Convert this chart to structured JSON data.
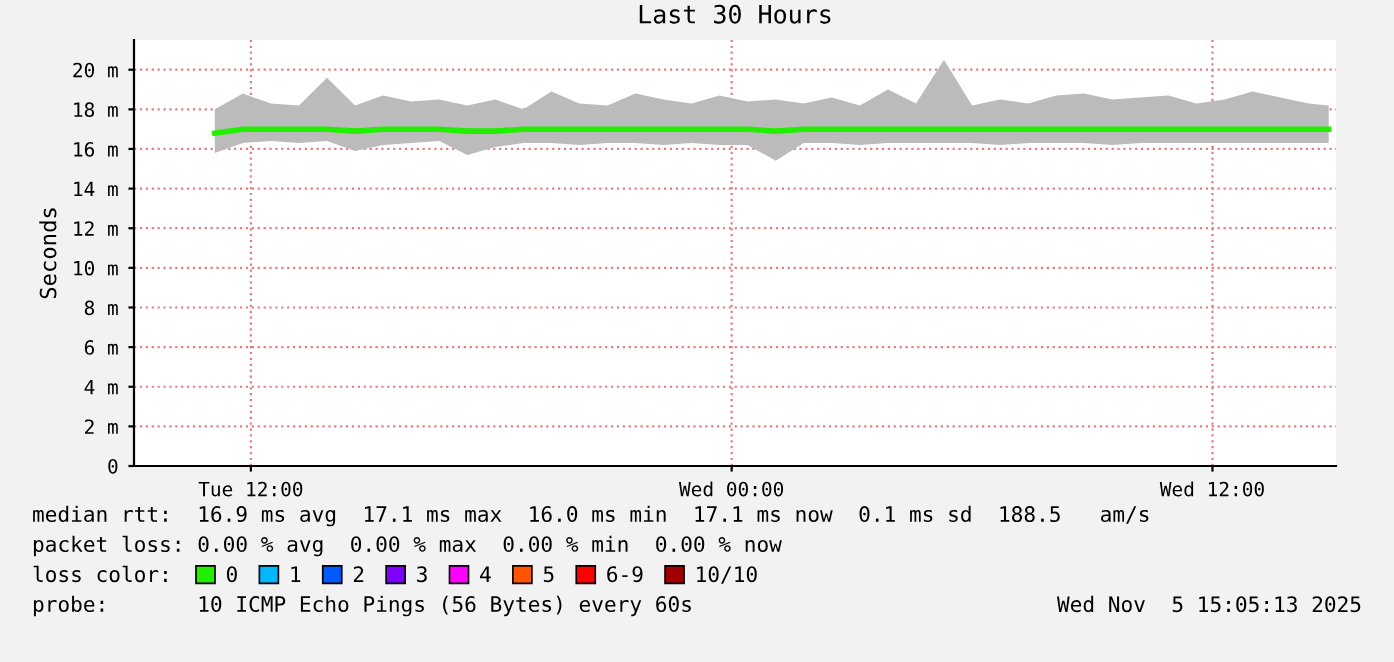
{
  "chart_data": {
    "type": "line",
    "title": "Last 30 Hours",
    "ylabel": "Seconds",
    "x": [
      "2025-11-04T11:06",
      "2025-11-04T11:48",
      "2025-11-04T12:30",
      "2025-11-04T13:12",
      "2025-11-04T13:54",
      "2025-11-04T14:36",
      "2025-11-04T15:18",
      "2025-11-04T16:00",
      "2025-11-04T16:42",
      "2025-11-04T17:24",
      "2025-11-04T18:06",
      "2025-11-04T18:48",
      "2025-11-04T19:30",
      "2025-11-04T20:12",
      "2025-11-04T20:54",
      "2025-11-04T21:36",
      "2025-11-04T22:18",
      "2025-11-04T23:00",
      "2025-11-04T23:42",
      "2025-11-05T00:24",
      "2025-11-05T01:06",
      "2025-11-05T01:48",
      "2025-11-05T02:30",
      "2025-11-05T03:12",
      "2025-11-05T03:54",
      "2025-11-05T04:36",
      "2025-11-05T05:18",
      "2025-11-05T06:00",
      "2025-11-05T06:42",
      "2025-11-05T07:24",
      "2025-11-05T08:06",
      "2025-11-05T08:48",
      "2025-11-05T09:30",
      "2025-11-05T10:12",
      "2025-11-05T10:54",
      "2025-11-05T11:36",
      "2025-11-05T12:18",
      "2025-11-05T13:00",
      "2025-11-05T13:42",
      "2025-11-05T14:24",
      "2025-11-05T14:54"
    ],
    "series": [
      {
        "name": "0",
        "color": "#22ee00",
        "values": [
          16.8,
          17.0,
          17.0,
          17.0,
          17.0,
          16.9,
          17.0,
          17.0,
          17.0,
          16.9,
          16.9,
          17.0,
          17.0,
          17.0,
          17.0,
          17.0,
          17.0,
          17.0,
          17.0,
          17.0,
          16.9,
          17.0,
          17.0,
          17.0,
          17.0,
          17.0,
          17.0,
          17.0,
          17.0,
          17.0,
          17.0,
          17.0,
          17.0,
          17.0,
          17.0,
          17.0,
          17.0,
          17.0,
          17.0,
          17.0,
          17.0
        ],
        "lower": [
          15.8,
          16.3,
          16.4,
          16.3,
          16.4,
          15.9,
          16.2,
          16.3,
          16.4,
          15.7,
          16.1,
          16.3,
          16.3,
          16.2,
          16.3,
          16.3,
          16.2,
          16.3,
          16.2,
          16.2,
          15.4,
          16.3,
          16.3,
          16.2,
          16.3,
          16.3,
          16.3,
          16.3,
          16.2,
          16.3,
          16.3,
          16.3,
          16.2,
          16.3,
          16.3,
          16.3,
          16.3,
          16.3,
          16.3,
          16.3,
          16.3
        ],
        "upper": [
          18.0,
          18.8,
          18.3,
          18.2,
          19.6,
          18.2,
          18.7,
          18.4,
          18.5,
          18.2,
          18.5,
          18.0,
          18.9,
          18.3,
          18.2,
          18.8,
          18.5,
          18.3,
          18.7,
          18.4,
          18.5,
          18.3,
          18.6,
          18.2,
          19.0,
          18.3,
          20.5,
          18.2,
          18.5,
          18.3,
          18.7,
          18.8,
          18.5,
          18.6,
          18.7,
          18.3,
          18.5,
          18.9,
          18.6,
          18.3,
          18.2
        ]
      },
      {
        "name": "1",
        "color": "#00b8ff",
        "values": [
          null,
          null,
          null,
          null,
          null,
          null,
          null,
          null,
          null,
          null,
          null,
          null,
          null,
          null,
          null,
          null,
          null,
          null,
          null,
          null,
          null,
          null,
          null,
          null,
          null,
          null,
          null,
          null,
          null,
          null,
          null,
          null,
          null,
          null,
          null,
          null,
          null,
          null,
          null,
          null,
          null
        ]
      },
      {
        "name": "2",
        "color": "#0059ff",
        "values": [
          null,
          null,
          null,
          null,
          null,
          null,
          null,
          null,
          null,
          null,
          null,
          null,
          null,
          null,
          null,
          null,
          null,
          null,
          null,
          null,
          null,
          null,
          null,
          null,
          null,
          null,
          null,
          null,
          null,
          null,
          null,
          null,
          null,
          null,
          null,
          null,
          null,
          null,
          null,
          null,
          null
        ]
      },
      {
        "name": "3",
        "color": "#7e00ff",
        "values": [
          null,
          null,
          null,
          null,
          null,
          null,
          null,
          null,
          null,
          null,
          null,
          null,
          null,
          null,
          null,
          null,
          null,
          null,
          null,
          null,
          null,
          null,
          null,
          null,
          null,
          null,
          null,
          null,
          null,
          null,
          null,
          null,
          null,
          null,
          null,
          null,
          null,
          null,
          null,
          null,
          null
        ]
      },
      {
        "name": "4",
        "color": "#ff00ff",
        "values": [
          null,
          null,
          null,
          null,
          null,
          null,
          null,
          null,
          null,
          null,
          null,
          null,
          null,
          null,
          null,
          null,
          null,
          null,
          null,
          null,
          null,
          null,
          null,
          null,
          null,
          null,
          null,
          null,
          null,
          null,
          null,
          null,
          null,
          null,
          null,
          null,
          null,
          null,
          null,
          null,
          null
        ]
      },
      {
        "name": "5",
        "color": "#ff5500",
        "values": [
          null,
          null,
          null,
          null,
          null,
          null,
          null,
          null,
          null,
          null,
          null,
          null,
          null,
          null,
          null,
          null,
          null,
          null,
          null,
          null,
          null,
          null,
          null,
          null,
          null,
          null,
          null,
          null,
          null,
          null,
          null,
          null,
          null,
          null,
          null,
          null,
          null,
          null,
          null,
          null,
          null
        ]
      },
      {
        "name": "6-9",
        "color": "#ff0000",
        "values": [
          null,
          null,
          null,
          null,
          null,
          null,
          null,
          null,
          null,
          null,
          null,
          null,
          null,
          null,
          null,
          null,
          null,
          null,
          null,
          null,
          null,
          null,
          null,
          null,
          null,
          null,
          null,
          null,
          null,
          null,
          null,
          null,
          null,
          null,
          null,
          null,
          null,
          null,
          null,
          null,
          null
        ]
      },
      {
        "name": "10/10",
        "color": "#a10000",
        "values": [
          null,
          null,
          null,
          null,
          null,
          null,
          null,
          null,
          null,
          null,
          null,
          null,
          null,
          null,
          null,
          null,
          null,
          null,
          null,
          null,
          null,
          null,
          null,
          null,
          null,
          null,
          null,
          null,
          null,
          null,
          null,
          null,
          null,
          null,
          null,
          null,
          null,
          null,
          null,
          null,
          null
        ]
      }
    ],
    "xlim": [
      "2025-11-04T09:05",
      "2025-11-05T15:05"
    ],
    "xticks": [
      {
        "value": "2025-11-04T12:00",
        "label": "Tue 12:00"
      },
      {
        "value": "2025-11-05T00:00",
        "label": "Wed 00:00"
      },
      {
        "value": "2025-11-05T12:00",
        "label": "Wed 12:00"
      }
    ],
    "ylim": [
      0,
      21.5
    ],
    "yticks": [
      0,
      {
        "value": 2,
        "label": "2 m"
      },
      {
        "value": 4,
        "label": "4 m"
      },
      {
        "value": 6,
        "label": "6 m"
      },
      {
        "value": 8,
        "label": "8 m"
      },
      {
        "value": 10,
        "label": "10 m"
      },
      {
        "value": 12,
        "label": "12 m"
      },
      {
        "value": 14,
        "label": "14 m"
      },
      {
        "value": 16,
        "label": "16 m"
      },
      {
        "value": 18,
        "label": "18 m"
      },
      {
        "value": 20,
        "label": "20 m"
      }
    ],
    "grid": true,
    "legend": "bottom",
    "marker": "none",
    "line_style": "solid",
    "annotations": [
      "median rtt:  16.9 ms avg  17.1 ms max  16.0 ms min  17.1 ms now  0.1 ms sd  188.5   am/s",
      "packet loss: 0.00 % avg  0.00 % max  0.00 % min  0.00 % now",
      "loss color:",
      "probe:       10 ICMP Echo Pings (56 Bytes) every 60s",
      "Wed Nov  5 15:05:13 2025"
    ]
  }
}
